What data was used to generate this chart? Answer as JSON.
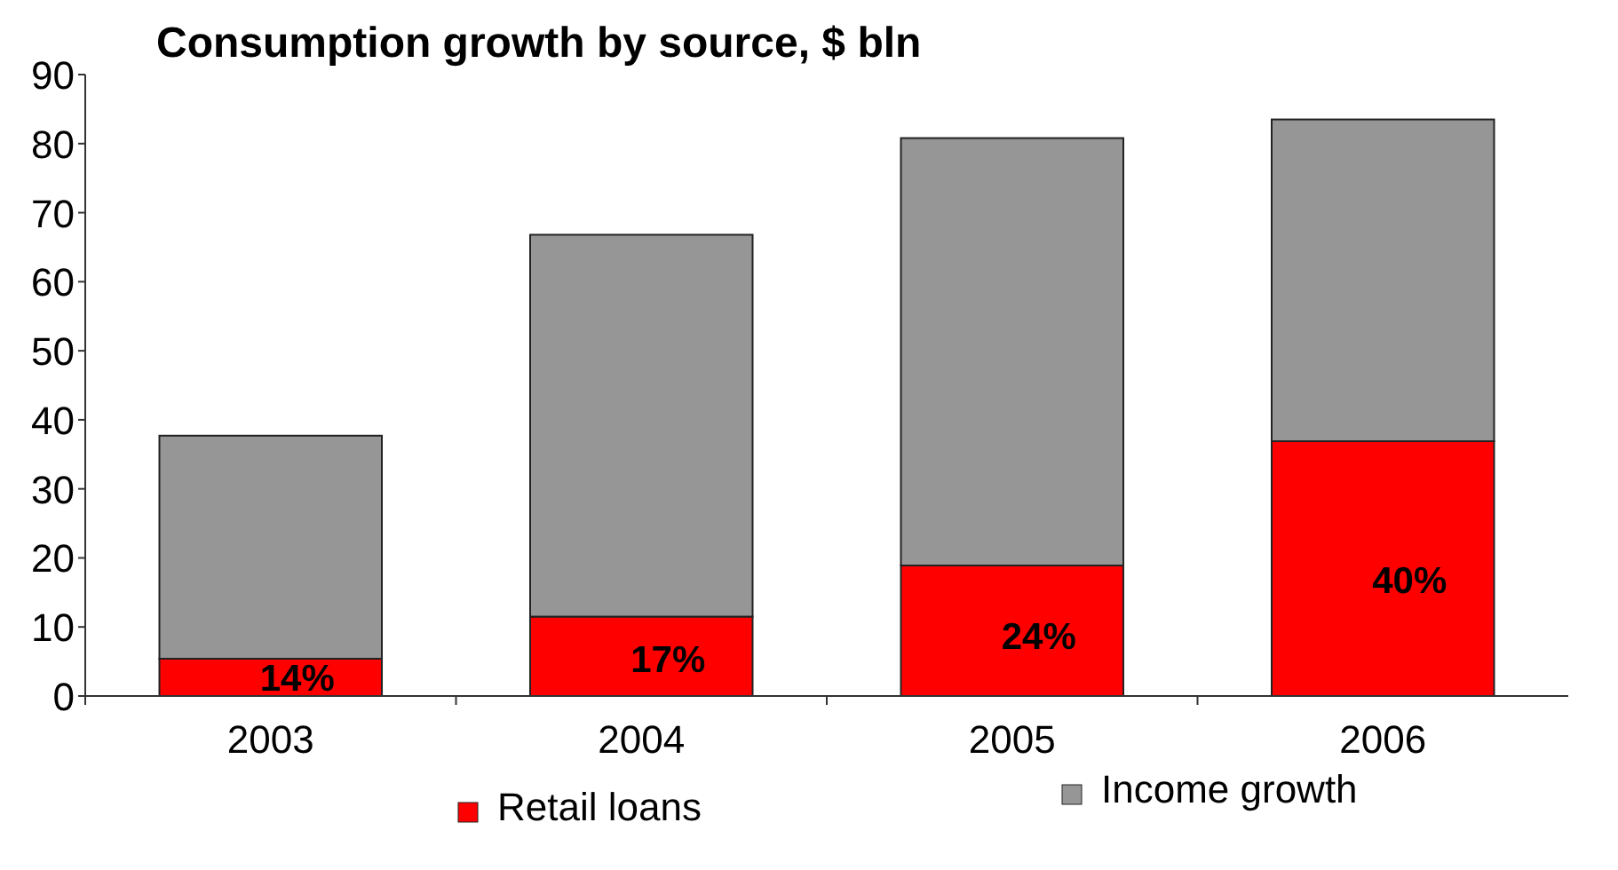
{
  "chart_data": {
    "type": "bar",
    "title": "Consumption growth by source, $ bln",
    "categories": [
      "2003",
      "2004",
      "2005",
      "2006"
    ],
    "stacked": true,
    "series": [
      {
        "name": "Retail loans",
        "color": "#ff0000",
        "values": [
          5.4,
          11.5,
          18.9,
          36.9
        ]
      },
      {
        "name": "Income growth",
        "color": "#969696",
        "values": [
          32.3,
          55.3,
          61.9,
          46.6
        ]
      }
    ],
    "annotations": [
      "14%",
      "17%",
      "24%",
      "40%"
    ],
    "ylim": [
      0,
      90
    ],
    "yticks": [
      0,
      10,
      20,
      30,
      40,
      50,
      60,
      70,
      80,
      90
    ],
    "grid": false,
    "legend": "bottom"
  }
}
